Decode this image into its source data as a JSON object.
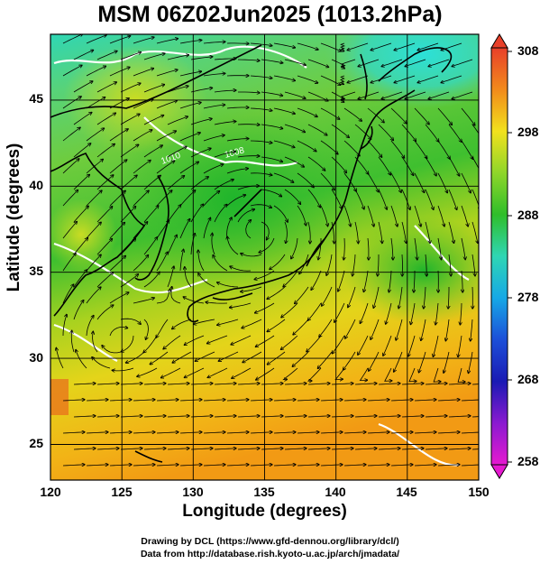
{
  "title": "MSM 06Z02Jun2025 (1013.2hPa)",
  "x_axis": {
    "label": "Longitude (degrees)",
    "ticks": [
      "120",
      "125",
      "130",
      "135",
      "140",
      "145",
      "150"
    ]
  },
  "y_axis": {
    "label": "Latitude  (degrees)",
    "ticks": [
      "25",
      "30",
      "35",
      "40",
      "45"
    ]
  },
  "colorbar": {
    "ticks": [
      "308",
      "298",
      "288",
      "278",
      "268",
      "258"
    ],
    "range": [
      258,
      308
    ]
  },
  "credits": {
    "line1": "Drawing by DCL (https://www.gfd-dennou.org/library/dcl/)",
    "line2": "Data from http://database.rish.kyoto-u.ac.jp/arch/jmadata/"
  },
  "map": {
    "lon_range": [
      120,
      150
    ],
    "lat_range": [
      22.5,
      47.5
    ],
    "field": "surface temperature with wind streamlines",
    "contour_labels": [
      "1010",
      "1008"
    ]
  }
}
